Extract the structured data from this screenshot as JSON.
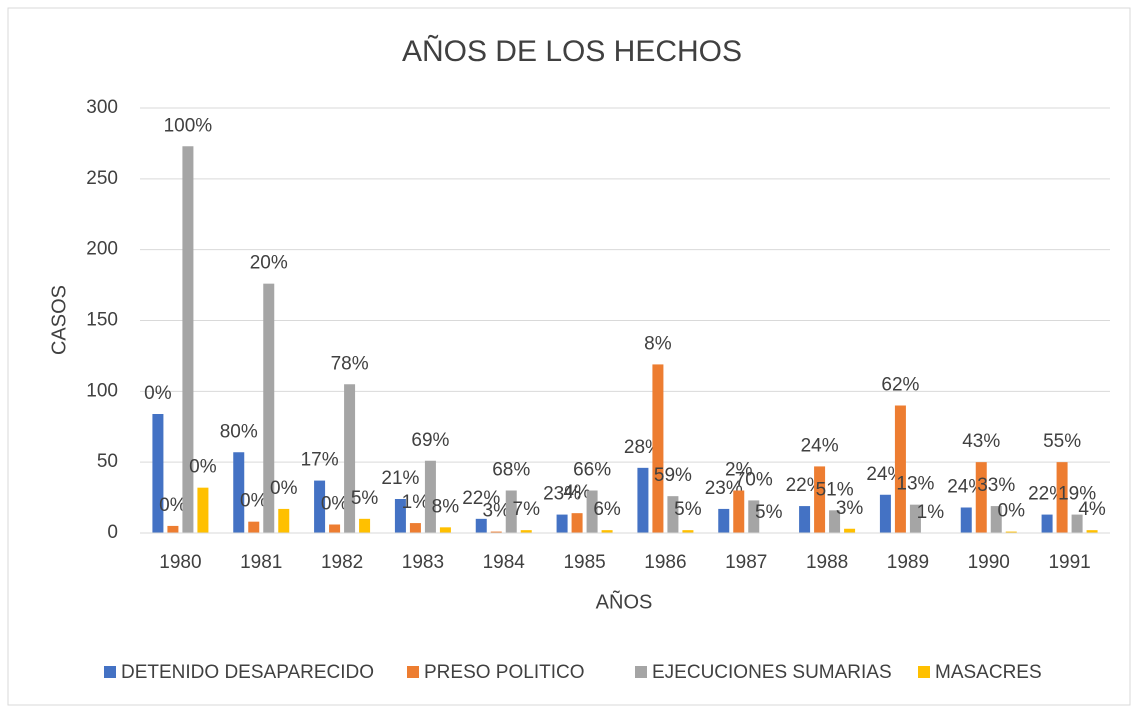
{
  "chart_data": {
    "type": "bar",
    "title": "AÑOS DE LOS HECHOS",
    "x_label": "AÑOS",
    "y_label": "CASOS",
    "categories": [
      "1980",
      "1981",
      "1982",
      "1983",
      "1984",
      "1985",
      "1986",
      "1987",
      "1988",
      "1989",
      "1990",
      "1991"
    ],
    "series": [
      {
        "name": "DETENIDO DESAPARECIDO",
        "color": "#4472c4",
        "values": [
          84,
          57,
          37,
          24,
          10,
          13,
          46,
          17,
          19,
          27,
          18,
          13
        ],
        "data_labels": [
          "0%",
          "80%",
          "17%",
          "21%",
          "22%",
          "23%",
          "28%",
          "23%",
          "22%",
          "24%",
          "24%",
          "22%"
        ]
      },
      {
        "name": "PRESO POLITICO",
        "color": "#ed7d31",
        "values": [
          5,
          8,
          6,
          7,
          1,
          14,
          119,
          30,
          47,
          90,
          50,
          50
        ],
        "data_labels": [
          "0%",
          "0%",
          "0%",
          "1%",
          "3%",
          "4%",
          "8%",
          "2%",
          "24%",
          "62%",
          "43%",
          "55%"
        ]
      },
      {
        "name": "EJECUCIONES SUMARIAS",
        "color": "#a5a5a5",
        "values": [
          273,
          176,
          105,
          51,
          30,
          30,
          26,
          23,
          16,
          20,
          19,
          13
        ],
        "data_labels": [
          "100%",
          "20%",
          "78%",
          "69%",
          "68%",
          "66%",
          "59%",
          "70%",
          "51%",
          "13%",
          "33%",
          "19%"
        ]
      },
      {
        "name": "MASACRES",
        "color": "#ffc000",
        "values": [
          32,
          17,
          10,
          4,
          2,
          2,
          2,
          0,
          3,
          0,
          1,
          2
        ],
        "data_labels": [
          "0%",
          "0%",
          "5%",
          "8%",
          "7%",
          "6%",
          "5%",
          "5%",
          "3%",
          "1%",
          "0%",
          "4%"
        ]
      }
    ],
    "ylim": [
      0,
      300
    ],
    "yticks": [
      0,
      50,
      100,
      150,
      200,
      250,
      300
    ],
    "grid": true,
    "legend": "bottom"
  }
}
